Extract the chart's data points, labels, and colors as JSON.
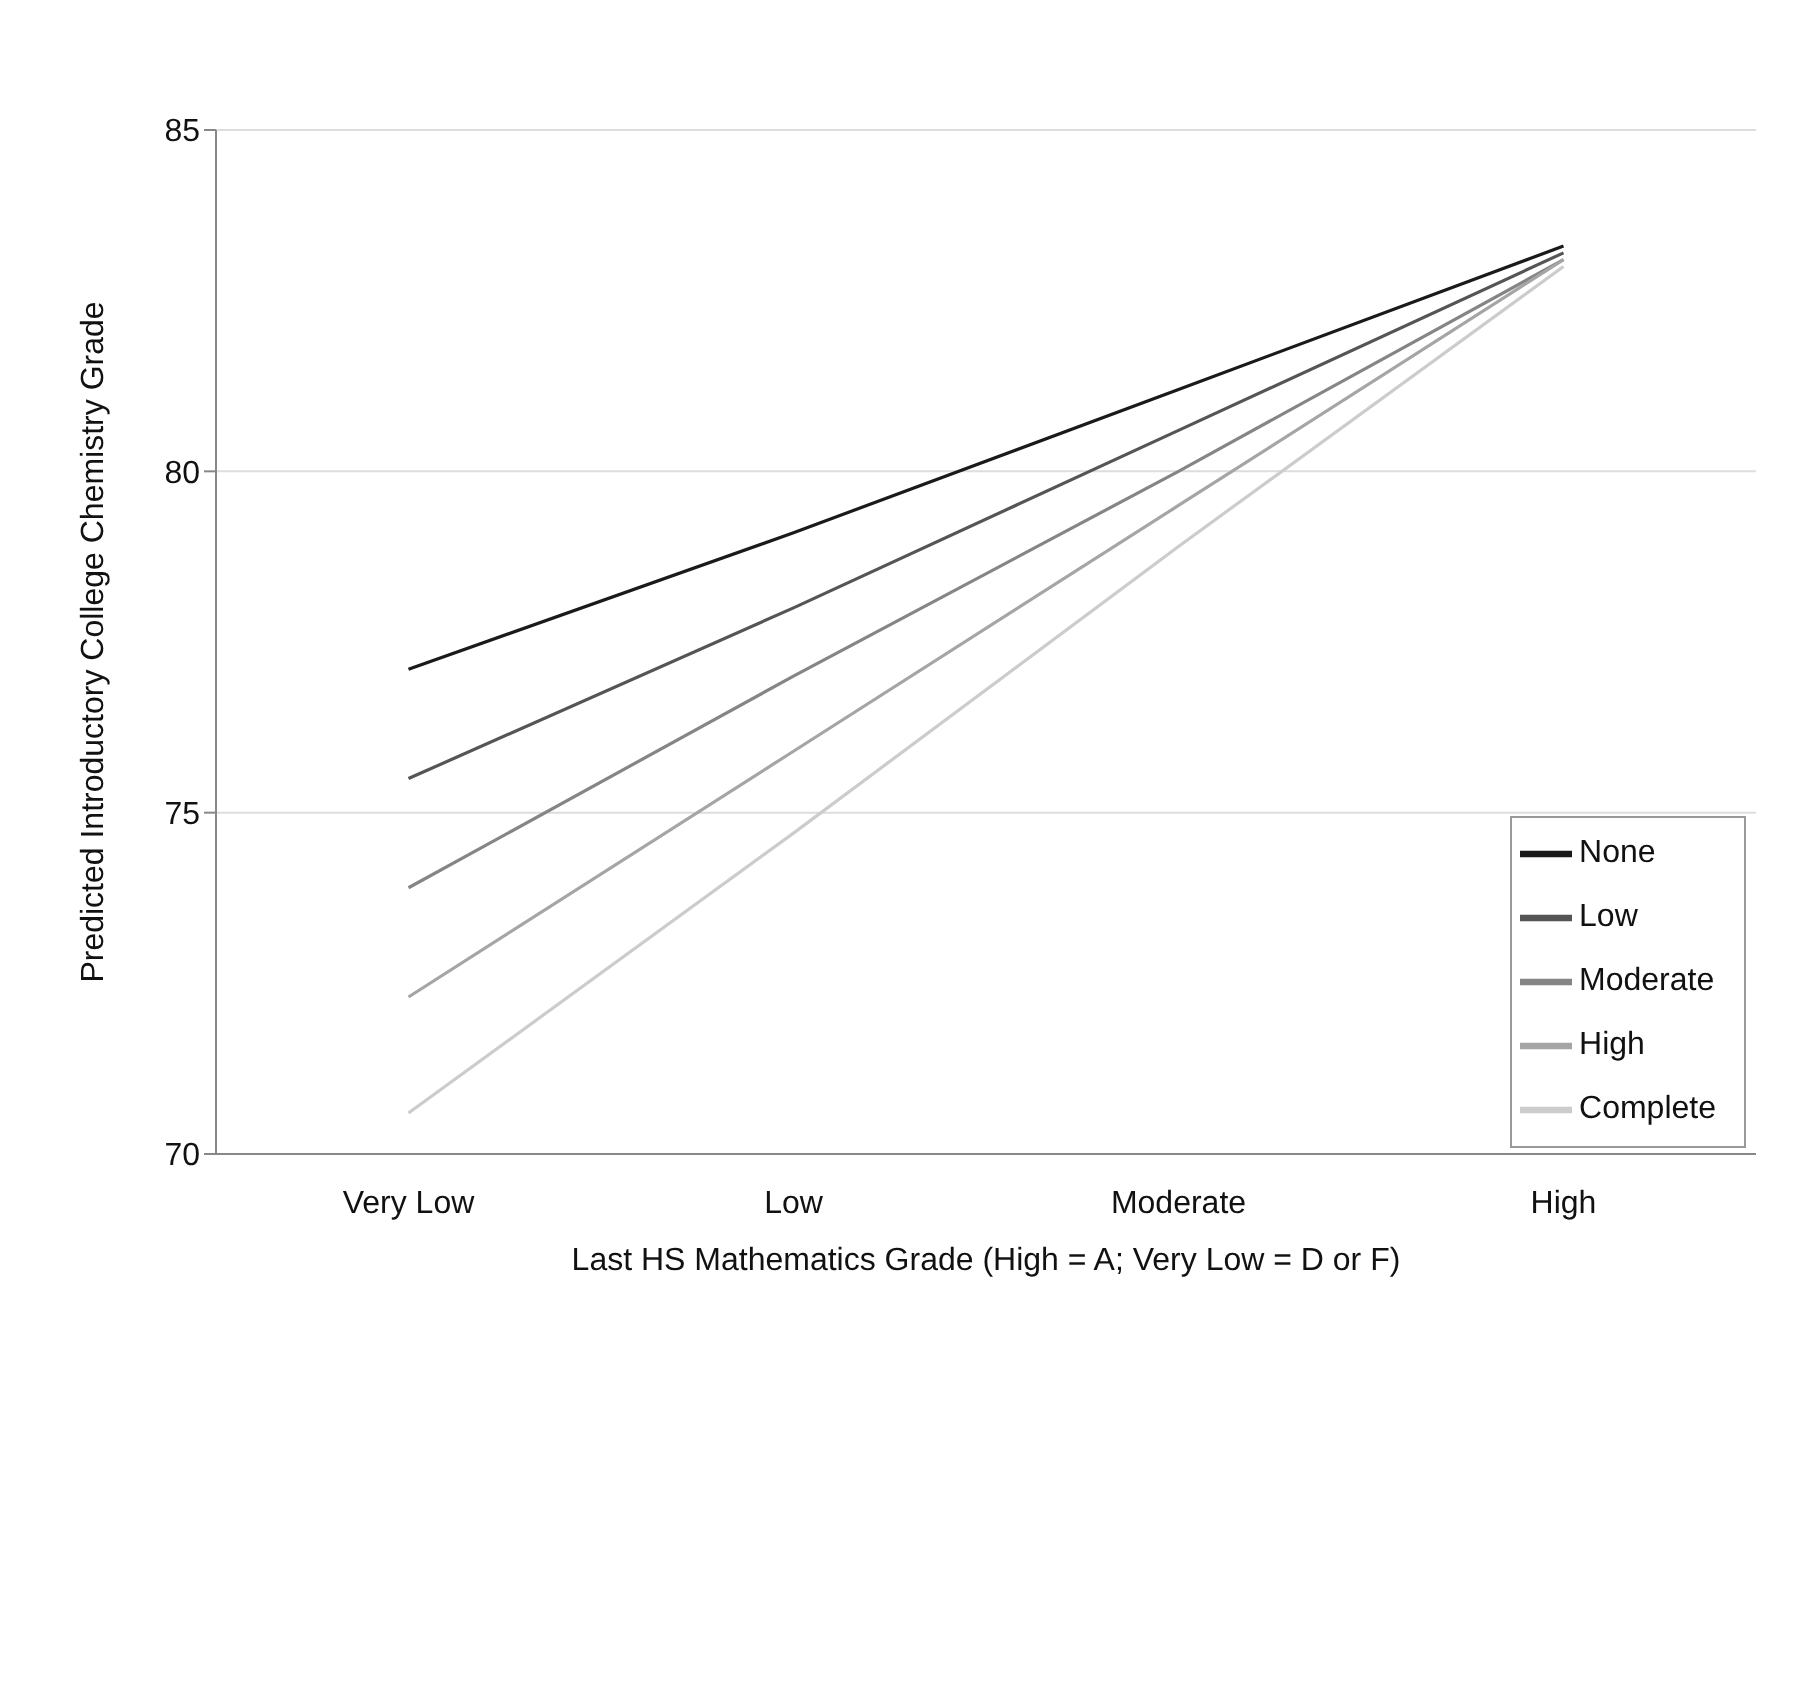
{
  "chart_data": {
    "type": "line",
    "xlabel": "Last HS Mathematics Grade (High = A; Very Low = D or F)",
    "ylabel": "Predicted Introductory College Chemistry Grade",
    "categories": [
      "Very Low",
      "Low",
      "Moderate",
      "High"
    ],
    "series": [
      {
        "name": "None",
        "color": "#1a1a1a",
        "values": [
          77.1,
          79.1,
          81.2,
          83.3
        ]
      },
      {
        "name": "Low",
        "color": "#555555",
        "values": [
          75.5,
          78.0,
          80.6,
          83.2
        ]
      },
      {
        "name": "Moderate",
        "color": "#858585",
        "values": [
          73.9,
          77.0,
          80.0,
          83.1
        ]
      },
      {
        "name": "High",
        "color": "#a5a5a5",
        "values": [
          72.3,
          75.9,
          79.5,
          83.1
        ]
      },
      {
        "name": "Complete",
        "color": "#cccccc",
        "values": [
          70.6,
          74.7,
          78.9,
          83.0
        ]
      }
    ],
    "ylim": [
      70,
      85
    ],
    "yticks": [
      70,
      75,
      80,
      85
    ],
    "grid": "y",
    "legend": "bottom right",
    "marker": "none",
    "line_style": "solid"
  }
}
